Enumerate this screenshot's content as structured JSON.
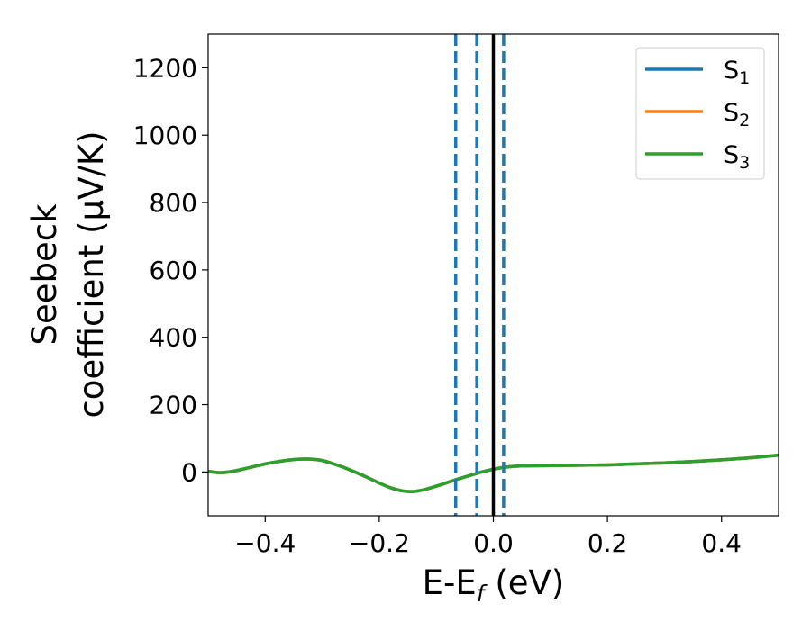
{
  "chart_data": {
    "type": "line",
    "xlabel": "E-E$_f$ (eV)",
    "xlabel_parts": {
      "main": "E-E",
      "sub": "f",
      "rest": " (eV)"
    },
    "ylabel_line1": "Seebeck",
    "ylabel_line2": "coefficient  (μV/K)",
    "xlim": [
      -0.5,
      0.5
    ],
    "ylim": [
      -130,
      1300
    ],
    "xticks": [
      -0.4,
      -0.2,
      0.0,
      0.2,
      0.4
    ],
    "xtick_labels": [
      "−0.4",
      "−0.2",
      "0.0",
      "0.2",
      "0.4"
    ],
    "yticks": [
      0,
      200,
      400,
      600,
      800,
      1000,
      1200
    ],
    "ytick_labels": [
      "0",
      "200",
      "400",
      "600",
      "800",
      "1000",
      "1200"
    ],
    "grid": false,
    "legend_placement": "top-right",
    "series": [
      {
        "name": "S",
        "subscript": "1",
        "color": "#1f77b4",
        "x": [
          -0.5,
          -0.48,
          -0.46,
          -0.44,
          -0.42,
          -0.4,
          -0.38,
          -0.36,
          -0.34,
          -0.32,
          -0.3,
          -0.28,
          -0.26,
          -0.24,
          -0.22,
          -0.2,
          -0.18,
          -0.16,
          -0.14,
          -0.12,
          -0.1,
          -0.08,
          -0.06,
          -0.04,
          -0.02,
          0.0,
          0.02,
          0.05,
          0.1,
          0.15,
          0.2,
          0.25,
          0.3,
          0.35,
          0.4,
          0.45,
          0.5
        ],
        "y": [
          2,
          -2,
          1,
          8,
          16,
          24,
          30,
          35,
          38,
          38,
          34,
          24,
          12,
          -2,
          -17,
          -33,
          -47,
          -56,
          -58,
          -52,
          -42,
          -31,
          -20,
          -10,
          0,
          8,
          14,
          18,
          19,
          20,
          21,
          24,
          27,
          31,
          36,
          42,
          50
        ]
      },
      {
        "name": "S",
        "subscript": "2",
        "color": "#ff7f0e",
        "x": [
          -0.5,
          -0.48,
          -0.46,
          -0.44,
          -0.42,
          -0.4,
          -0.38,
          -0.36,
          -0.34,
          -0.32,
          -0.3,
          -0.28,
          -0.26,
          -0.24,
          -0.22,
          -0.2,
          -0.18,
          -0.16,
          -0.14,
          -0.12,
          -0.1,
          -0.08,
          -0.06,
          -0.04,
          -0.02,
          0.0,
          0.02,
          0.05,
          0.1,
          0.15,
          0.2,
          0.25,
          0.3,
          0.35,
          0.4,
          0.45,
          0.5
        ],
        "y": [
          2,
          -2,
          1,
          8,
          16,
          24,
          30,
          35,
          38,
          38,
          34,
          24,
          12,
          -2,
          -17,
          -33,
          -47,
          -56,
          -58,
          -52,
          -42,
          -31,
          -20,
          -10,
          0,
          8,
          14,
          18,
          19,
          20,
          21,
          24,
          27,
          31,
          36,
          42,
          50
        ]
      },
      {
        "name": "S",
        "subscript": "3",
        "color": "#2ca02c",
        "x": [
          -0.5,
          -0.48,
          -0.46,
          -0.44,
          -0.42,
          -0.4,
          -0.38,
          -0.36,
          -0.34,
          -0.32,
          -0.3,
          -0.28,
          -0.26,
          -0.24,
          -0.22,
          -0.2,
          -0.18,
          -0.16,
          -0.14,
          -0.12,
          -0.1,
          -0.08,
          -0.06,
          -0.04,
          -0.02,
          0.0,
          0.02,
          0.05,
          0.1,
          0.15,
          0.2,
          0.25,
          0.3,
          0.35,
          0.4,
          0.45,
          0.5
        ],
        "y": [
          2,
          -2,
          1,
          8,
          16,
          24,
          30,
          35,
          38,
          38,
          34,
          24,
          12,
          -2,
          -17,
          -33,
          -47,
          -56,
          -58,
          -52,
          -42,
          -31,
          -20,
          -10,
          0,
          8,
          14,
          18,
          19,
          20,
          21,
          24,
          27,
          31,
          36,
          42,
          50
        ]
      }
    ],
    "vertical_lines": [
      {
        "x": -0.066,
        "style": "dashed",
        "color": "#1f77b4"
      },
      {
        "x": -0.029,
        "style": "dashed",
        "color": "#1f77b4"
      },
      {
        "x": 0.018,
        "style": "dashed",
        "color": "#1f77b4"
      },
      {
        "x": 0.0,
        "style": "solid",
        "color": "#000000"
      }
    ]
  }
}
